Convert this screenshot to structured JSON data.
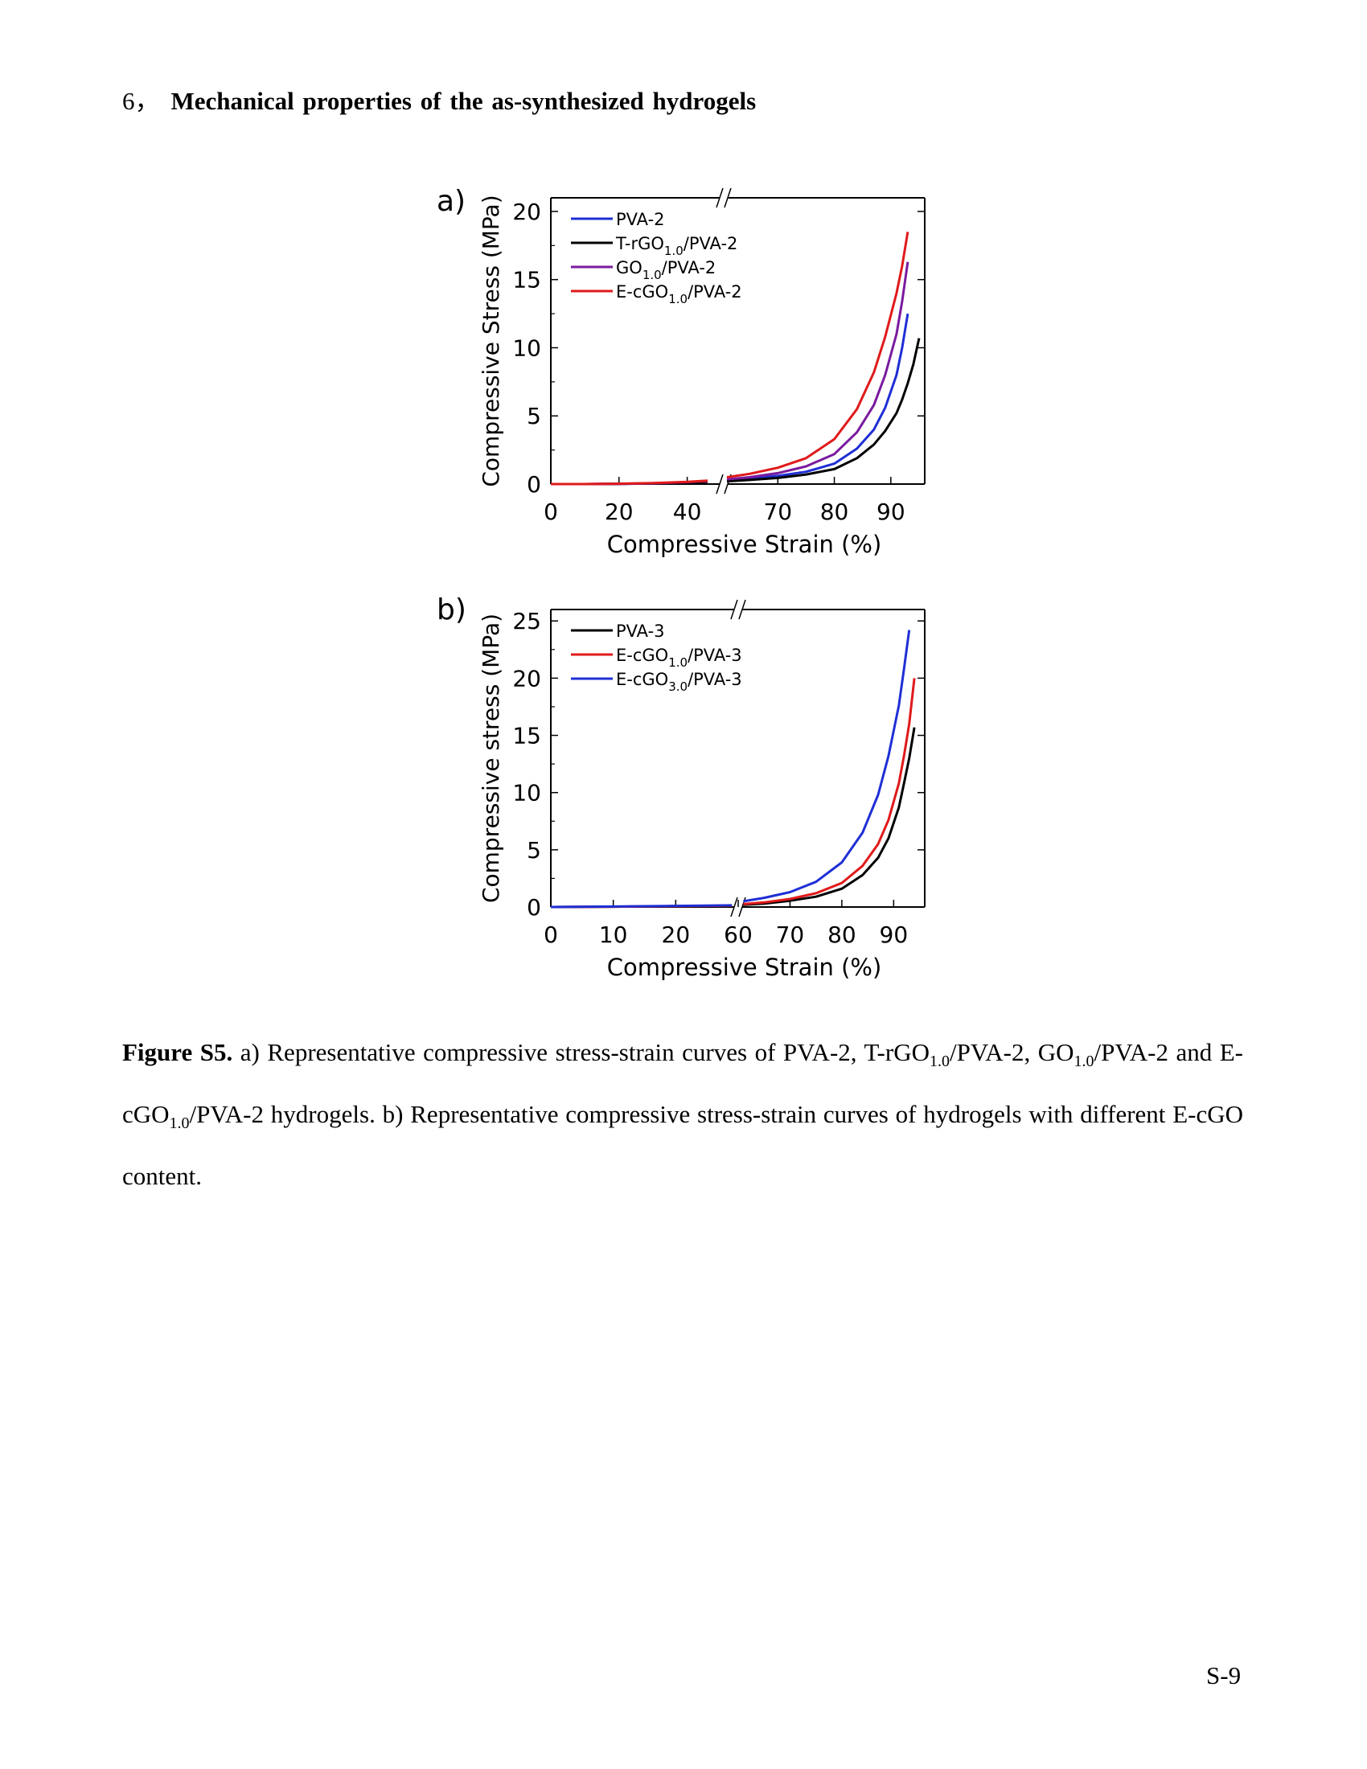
{
  "section": {
    "number": "6，",
    "title": "Mechanical  properties of the as-synthesized hydrogels"
  },
  "chart_data": [
    {
      "panel": "a)",
      "type": "line",
      "xlabel": "Compressive Strain (%)",
      "ylabel": "Compressive Stress (MPa)",
      "axis_break": [
        50,
        60
      ],
      "x_segments": [
        {
          "range": [
            0,
            50
          ],
          "ticks": [
            0,
            20,
            40
          ]
        },
        {
          "range": [
            60,
            96
          ],
          "ticks": [
            70,
            80,
            90
          ]
        }
      ],
      "ylim": [
        0,
        21
      ],
      "yticks": [
        0,
        5,
        10,
        15,
        20
      ],
      "legend_position": "top-left",
      "series": [
        {
          "name": "PVA-2",
          "label_parts": [
            "PVA-2"
          ],
          "color": "#1f2fd6",
          "x": [
            0,
            10,
            20,
            30,
            40,
            46,
            61,
            65,
            70,
            75,
            80,
            84,
            87,
            89,
            91,
            92,
            93
          ],
          "y": [
            0,
            0,
            0.02,
            0.05,
            0.12,
            0.2,
            0.3,
            0.4,
            0.6,
            0.9,
            1.5,
            2.6,
            4.0,
            5.6,
            8.0,
            10.0,
            12.5
          ]
        },
        {
          "name": "T-rGO1.0/PVA-2",
          "label_parts": [
            "T-rGO",
            "1.0",
            "/PVA-2"
          ],
          "color": "#000000",
          "x": [
            0,
            10,
            20,
            30,
            40,
            46,
            61,
            65,
            70,
            75,
            80,
            84,
            87,
            89,
            91,
            92,
            93,
            94,
            95
          ],
          "y": [
            0,
            0,
            0.02,
            0.05,
            0.1,
            0.16,
            0.2,
            0.3,
            0.45,
            0.7,
            1.1,
            1.9,
            2.9,
            3.9,
            5.2,
            6.2,
            7.4,
            8.8,
            10.7
          ]
        },
        {
          "name": "GO1.0/PVA-2",
          "label_parts": [
            "GO",
            "1.0",
            "/PVA-2"
          ],
          "color": "#7a1a9e",
          "x": [
            0,
            10,
            20,
            30,
            40,
            46,
            61,
            65,
            70,
            75,
            80,
            84,
            87,
            89,
            91,
            92,
            93
          ],
          "y": [
            0,
            0,
            0.02,
            0.06,
            0.14,
            0.22,
            0.35,
            0.5,
            0.8,
            1.3,
            2.2,
            3.8,
            5.8,
            8.0,
            11.0,
            13.4,
            16.3
          ]
        },
        {
          "name": "E-cGO1.0/PVA-2",
          "label_parts": [
            "E-cGO",
            "1.0",
            "/PVA-2"
          ],
          "color": "#e01a1a",
          "x": [
            0,
            10,
            20,
            30,
            40,
            46,
            61,
            65,
            70,
            75,
            80,
            84,
            87,
            89,
            91,
            92,
            93
          ],
          "y": [
            0,
            0,
            0.03,
            0.07,
            0.16,
            0.25,
            0.5,
            0.75,
            1.2,
            1.9,
            3.3,
            5.5,
            8.2,
            10.8,
            14.0,
            16.0,
            18.5
          ]
        }
      ]
    },
    {
      "panel": "b)",
      "type": "line",
      "xlabel": "Compressive Strain (%)",
      "ylabel": "Compressive stress (MPa)",
      "axis_break": [
        30,
        60
      ],
      "x_segments": [
        {
          "range": [
            0,
            30
          ],
          "ticks": [
            0,
            10,
            20
          ]
        },
        {
          "range": [
            60,
            96
          ],
          "ticks": [
            60,
            70,
            80,
            90
          ]
        }
      ],
      "ylim": [
        0,
        26
      ],
      "yticks": [
        0,
        5,
        10,
        15,
        20,
        25
      ],
      "legend_position": "top-left",
      "series": [
        {
          "name": "PVA-3",
          "label_parts": [
            "PVA-3"
          ],
          "color": "#000000",
          "x": [
            0,
            10,
            20,
            29,
            61,
            65,
            70,
            75,
            80,
            84,
            87,
            89,
            91,
            92,
            93,
            94
          ],
          "y": [
            0,
            0.03,
            0.08,
            0.12,
            0.2,
            0.3,
            0.55,
            0.9,
            1.6,
            2.8,
            4.3,
            6.0,
            8.7,
            10.8,
            13.0,
            15.7
          ]
        },
        {
          "name": "E-cGO1.0/PVA-3",
          "label_parts": [
            "E-cGO",
            "1.0",
            "/PVA-3"
          ],
          "color": "#e01a1a",
          "x": [
            0,
            10,
            20,
            29,
            61,
            65,
            70,
            75,
            80,
            84,
            87,
            89,
            91,
            92,
            93,
            94
          ],
          "y": [
            0,
            0.03,
            0.08,
            0.12,
            0.25,
            0.4,
            0.7,
            1.2,
            2.1,
            3.6,
            5.5,
            7.6,
            10.8,
            13.2,
            16.0,
            20.0
          ]
        },
        {
          "name": "E-cGO3.0/PVA-3",
          "label_parts": [
            "E-cGO",
            "3.0",
            "/PVA-3"
          ],
          "color": "#1f2fd6",
          "x": [
            0,
            10,
            20,
            29,
            61,
            65,
            70,
            75,
            80,
            84,
            87,
            89,
            91,
            92,
            93
          ],
          "y": [
            0,
            0.04,
            0.1,
            0.15,
            0.5,
            0.8,
            1.3,
            2.2,
            3.9,
            6.5,
            9.8,
            13.2,
            17.6,
            20.8,
            24.2
          ]
        }
      ]
    }
  ],
  "caption": {
    "label": "Figure S5.",
    "part1": " a) Representative compressive stress-strain curves of PVA-2, T-rGO",
    "sub1": "1.0",
    "part2": "/PVA-2, GO",
    "sub2": "1.0",
    "part3": "/PVA-2 and E-cGO",
    "sub3": "1.0",
    "part4": "/PVA-2 hydrogels. b) Representative compressive stress-strain curves of hydrogels with different E-cGO content."
  },
  "page_number": "S-9"
}
